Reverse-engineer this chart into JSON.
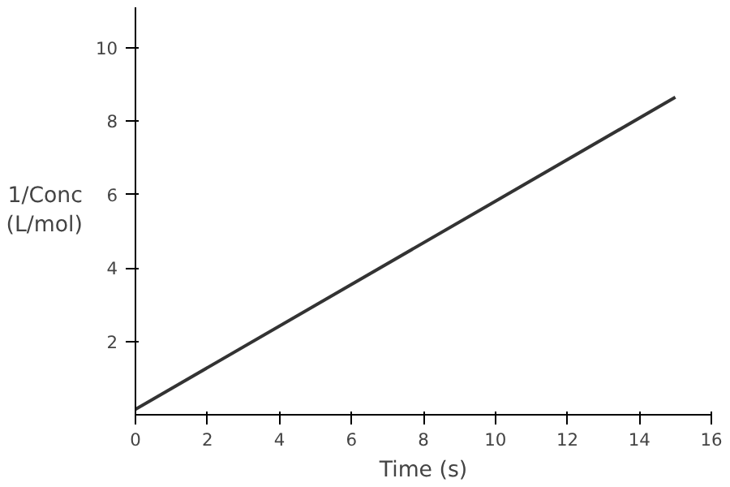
{
  "chart_data": {
    "type": "line",
    "xlabel": "Time (s)",
    "ylabel": "1/Conc\n(L/mol)",
    "x": [
      0,
      15
    ],
    "series": [
      {
        "color": "#333333",
        "values": [
          0.15,
          8.65
        ]
      }
    ],
    "xlim": [
      0,
      16
    ],
    "ylim": [
      0,
      11.1
    ],
    "xticks": [
      0,
      2,
      4,
      6,
      8,
      10,
      12,
      14,
      16
    ],
    "yticks": [
      2,
      4,
      6,
      8,
      10
    ],
    "grid": false,
    "marker": "none",
    "line_style": "solid"
  }
}
